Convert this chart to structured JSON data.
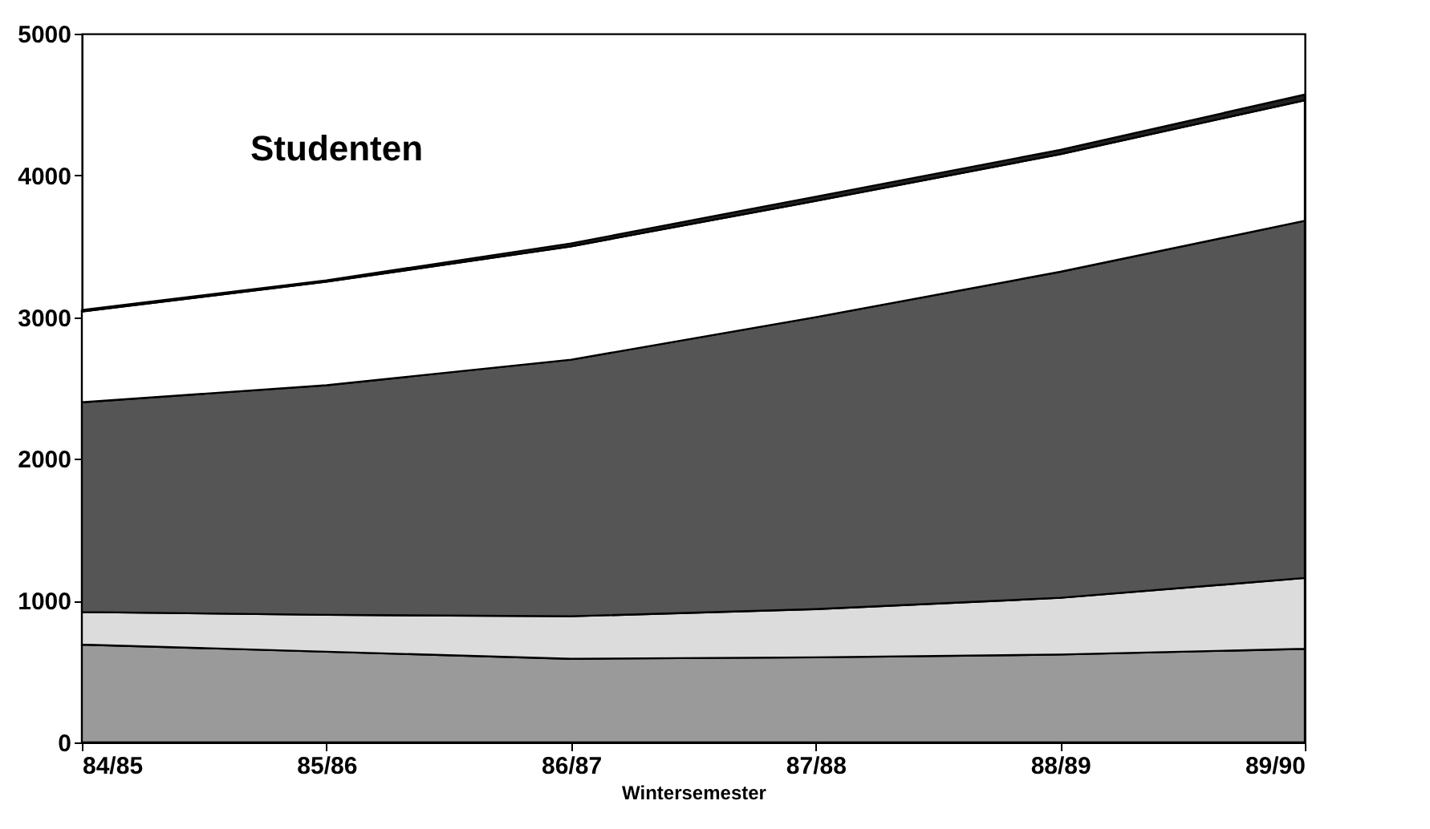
{
  "chart_data": {
    "type": "area",
    "stacked": true,
    "xlabel": "Wintersemester",
    "annotations": [
      "Studenten"
    ],
    "categories": [
      "84/85",
      "85/86",
      "86/87",
      "87/88",
      "88/89",
      "89/90"
    ],
    "series": [
      {
        "color": "#9a9a9a",
        "values": [
          690,
          640,
          590,
          600,
          620,
          660
        ]
      },
      {
        "color": "#dcdcdc",
        "values": [
          230,
          260,
          300,
          340,
          400,
          500
        ]
      },
      {
        "color": "#555555",
        "values": [
          1480,
          1620,
          1810,
          2060,
          2300,
          2520
        ]
      },
      {
        "color": "#ffffff",
        "values": [
          640,
          730,
          800,
          820,
          830,
          850
        ]
      },
      {
        "color": "#222222",
        "values": [
          10,
          10,
          20,
          30,
          30,
          40
        ]
      }
    ],
    "ylim": [
      0,
      5000
    ],
    "yticks": [
      0,
      1000,
      2000,
      3000,
      4000,
      5000
    ],
    "grid": false,
    "legend": false
  }
}
